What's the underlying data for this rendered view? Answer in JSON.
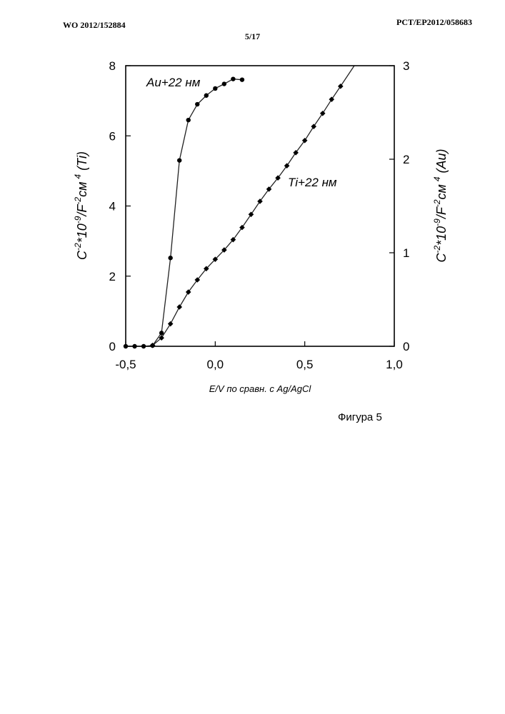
{
  "header": {
    "left": "WO 2012/152884",
    "right": "PCT/EP2012/058683",
    "page": "5/17"
  },
  "caption": "Фигура 5",
  "chart_data": {
    "type": "line",
    "xlabel": "E/V по сравн. с Ag/AgCl",
    "ylabel_left": {
      "base": "C",
      "exp1": "-2",
      "mid1": "*10",
      "exp2": "-9",
      "mid2": "/F",
      "exp3": "-2",
      "mid3": "см",
      "exp4": "4",
      "tail": " (Ti)"
    },
    "ylabel_right": {
      "base": "C",
      "exp1": "-2",
      "mid1": "*10",
      "exp2": "-9",
      "mid2": "/F",
      "exp3": "-2",
      "mid3": "см",
      "exp4": "4",
      "tail": " (Au)"
    },
    "xlim": [
      -0.5,
      1.0
    ],
    "ylim_left": [
      0,
      8
    ],
    "ylim_right": [
      0,
      3
    ],
    "x_ticks": [
      -0.5,
      0.0,
      0.5,
      1.0
    ],
    "x_tick_labels": [
      "-0,5",
      "0,0",
      "0,5",
      "1,0"
    ],
    "y_left_ticks": [
      0,
      2,
      4,
      6,
      8
    ],
    "y_left_tick_labels": [
      "0",
      "2",
      "4",
      "6",
      "8"
    ],
    "y_right_ticks": [
      0,
      1,
      2,
      3
    ],
    "y_right_tick_labels": [
      "0",
      "1",
      "2",
      "3"
    ],
    "grid": false,
    "series": [
      {
        "name": "Au+22 нм",
        "axis": "left",
        "marker": "circle",
        "x": [
          -0.5,
          -0.45,
          -0.4,
          -0.35,
          -0.3,
          -0.25,
          -0.2,
          -0.15,
          -0.1,
          -0.05,
          0.0,
          0.05,
          0.1,
          0.15
        ],
        "y": [
          0,
          0,
          0,
          0.02,
          0.38,
          2.52,
          5.3,
          6.45,
          6.9,
          7.15,
          7.35,
          7.48,
          7.62,
          7.6
        ]
      },
      {
        "name": "Ti+22 нм",
        "axis": "right",
        "marker": "diamond",
        "x": [
          -0.35,
          -0.3,
          -0.25,
          -0.2,
          -0.15,
          -0.1,
          -0.05,
          0.0,
          0.05,
          0.1,
          0.15,
          0.2,
          0.25,
          0.3,
          0.35,
          0.4,
          0.45,
          0.5,
          0.55,
          0.6,
          0.65,
          0.7
        ],
        "y": [
          0.01,
          0.09,
          0.24,
          0.42,
          0.58,
          0.71,
          0.83,
          0.93,
          1.03,
          1.14,
          1.27,
          1.41,
          1.55,
          1.68,
          1.8,
          1.93,
          2.07,
          2.2,
          2.35,
          2.49,
          2.64,
          2.78
        ]
      }
    ]
  }
}
